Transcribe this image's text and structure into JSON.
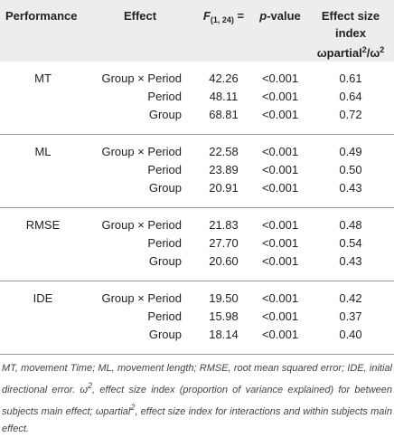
{
  "header": {
    "performance": "Performance",
    "effect": "Effect",
    "f_stat": "F",
    "f_df": "(1, 24)",
    "f_eq": " =",
    "p_value_p": "p",
    "p_value_rest": "-value",
    "effect_size_line1": "Effect size index",
    "effect_size_line2_a": "ωpartial",
    "effect_size_line2_sup": "2",
    "effect_size_line2_b": "/ω",
    "effect_size_line2_sup2": "2"
  },
  "groups": [
    {
      "performance": "MT",
      "rows": [
        {
          "effect": "Group × Period",
          "f": "42.26",
          "p": "<0.001",
          "es": "0.61"
        },
        {
          "effect": "Period",
          "f": "48.11",
          "p": "<0.001",
          "es": "0.64"
        },
        {
          "effect": "Group",
          "f": "68.81",
          "p": "<0.001",
          "es": "0.72"
        }
      ]
    },
    {
      "performance": "ML",
      "rows": [
        {
          "effect": "Group × Period",
          "f": "22.58",
          "p": "<0.001",
          "es": "0.49"
        },
        {
          "effect": "Period",
          "f": "23.89",
          "p": "<0.001",
          "es": "0.50"
        },
        {
          "effect": "Group",
          "f": "20.91",
          "p": "<0.001",
          "es": "0.43"
        }
      ]
    },
    {
      "performance": "RMSE",
      "rows": [
        {
          "effect": "Group × Period",
          "f": "21.83",
          "p": "<0.001",
          "es": "0.48"
        },
        {
          "effect": "Period",
          "f": "27.70",
          "p": "<0.001",
          "es": "0.54"
        },
        {
          "effect": "Group",
          "f": "20.60",
          "p": "<0.001",
          "es": "0.43"
        }
      ]
    },
    {
      "performance": "IDE",
      "rows": [
        {
          "effect": "Group × Period",
          "f": "19.50",
          "p": "<0.001",
          "es": "0.42"
        },
        {
          "effect": "Period",
          "f": "15.98",
          "p": "<0.001",
          "es": "0.37"
        },
        {
          "effect": "Group",
          "f": "18.14",
          "p": "<0.001",
          "es": "0.40"
        }
      ]
    }
  ],
  "footnote": {
    "part1": "MT, movement Time; ML, movement length; RMSE, root mean squared error; IDE, initial directional error. ω",
    "sup1": "2",
    "part2": ", effect size index (proportion of variance explained) for between subjects main effect; ωpartial",
    "sup2": "2",
    "part3": ", effect size index for interactions and within subjects main effect."
  },
  "colors": {
    "header_bg": "#ededed",
    "rule": "#9a9a9a",
    "text": "#222222"
  }
}
